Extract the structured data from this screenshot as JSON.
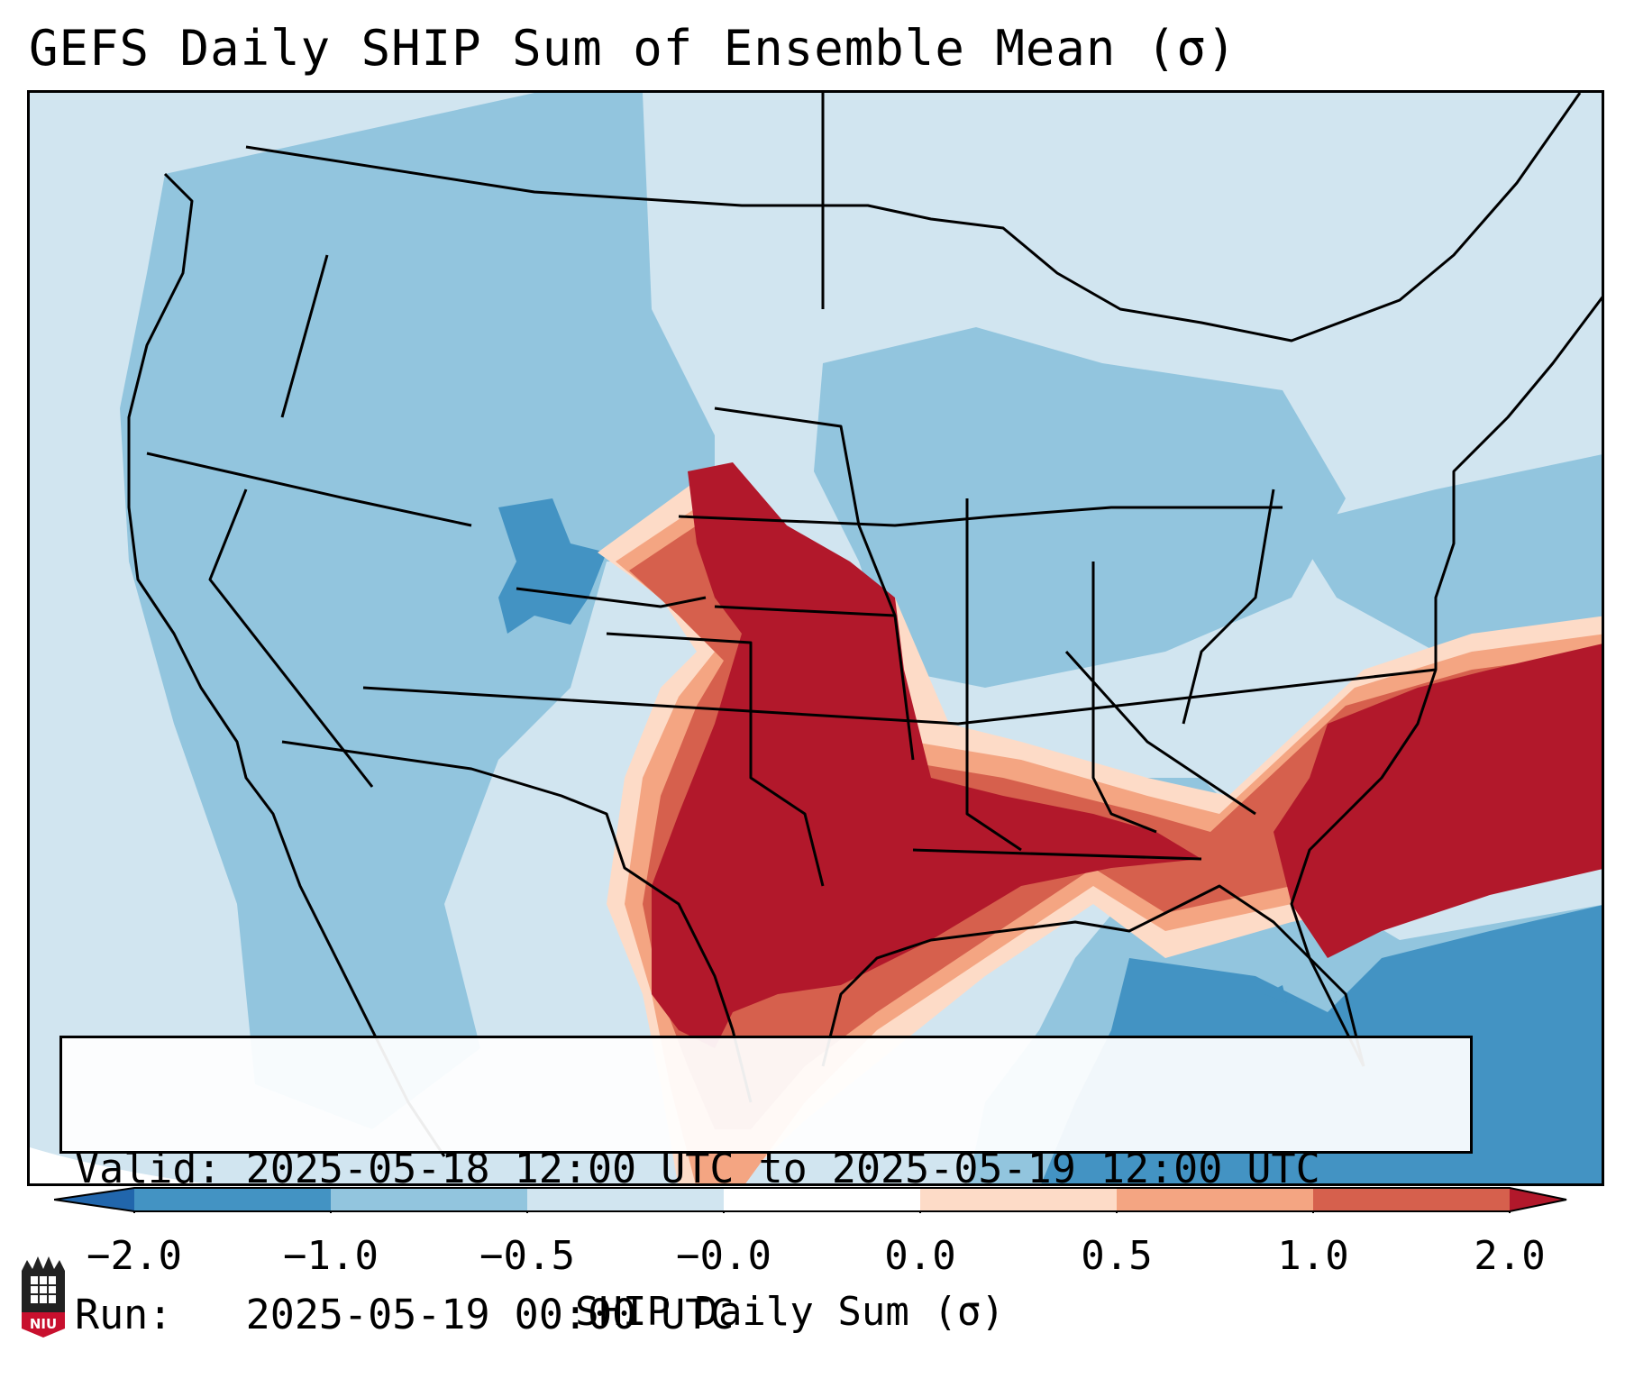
{
  "title": "GEFS Daily SHIP Sum of Ensemble Mean (σ)",
  "info": {
    "valid_line": "Valid: 2025-05-18 12:00 UTC to 2025-05-19 12:00 UTC",
    "run_line": "Run:   2025-05-19 00:00 UTC"
  },
  "colorbar": {
    "label": "SHIP Daily Sum (σ)",
    "ticks": [
      "−2.0",
      "−1.0",
      "−0.5",
      "−0.0",
      "0.0",
      "0.5",
      "1.0",
      "2.0"
    ],
    "colors": {
      "below_min": "#2166ac",
      "bin1": "#4393c3",
      "bin2": "#92c5de",
      "bin3": "#d1e5f0",
      "bin4": "#ffffff",
      "bin5": "#fddbc7",
      "bin6": "#f4a582",
      "bin7": "#d6604d",
      "above_max": "#b2182b"
    }
  },
  "logo": {
    "text": "NIU",
    "color": "#c8102e"
  }
}
